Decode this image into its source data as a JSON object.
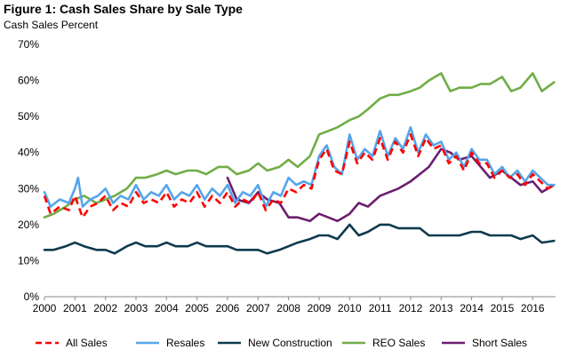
{
  "chart_data": {
    "type": "line",
    "title": "Figure 1: Cash Sales Share by Sale Type",
    "ylabel": "Cash Sales Percent",
    "xlabel": "",
    "xlim": [
      2000,
      2016.75
    ],
    "ylim": [
      0,
      70
    ],
    "yticks": [
      "0%",
      "10%",
      "20%",
      "30%",
      "40%",
      "50%",
      "60%",
      "70%"
    ],
    "xticks": [
      "2000",
      "2001",
      "2002",
      "2003",
      "2004",
      "2005",
      "2006",
      "2007",
      "2008",
      "2009",
      "2010",
      "2011",
      "2012",
      "2013",
      "2014",
      "2015",
      "2016"
    ],
    "grid": false,
    "legend_position": "bottom",
    "series": [
      {
        "name": "All Sales",
        "color": "#ff0000",
        "dash": true,
        "x": [
          2000,
          2000.2,
          2000.5,
          2000.8,
          2001,
          2001.25,
          2001.5,
          2001.75,
          2002,
          2002.25,
          2002.5,
          2002.75,
          2003,
          2003.25,
          2003.5,
          2003.75,
          2004,
          2004.25,
          2004.5,
          2004.75,
          2005,
          2005.25,
          2005.5,
          2005.75,
          2006,
          2006.25,
          2006.5,
          2006.75,
          2007,
          2007.25,
          2007.5,
          2007.75,
          2008,
          2008.25,
          2008.5,
          2008.75,
          2009,
          2009.25,
          2009.5,
          2009.75,
          2010,
          2010.25,
          2010.5,
          2010.75,
          2011,
          2011.25,
          2011.5,
          2011.75,
          2012,
          2012.25,
          2012.5,
          2012.75,
          2013,
          2013.25,
          2013.5,
          2013.75,
          2014,
          2014.25,
          2014.5,
          2014.75,
          2015,
          2015.25,
          2015.5,
          2015.75,
          2016,
          2016.25,
          2016.5,
          2016.7
        ],
        "y": [
          28,
          23,
          25,
          24,
          28,
          22,
          25,
          26,
          28,
          24,
          26,
          25,
          29,
          26,
          27,
          26,
          29,
          25,
          27,
          26,
          29,
          25,
          28,
          26,
          29,
          25,
          27,
          26,
          29,
          24,
          27,
          26,
          30,
          29,
          31,
          30,
          38,
          41,
          35,
          34,
          43,
          37,
          40,
          38,
          44,
          38,
          43,
          40,
          45,
          39,
          44,
          41,
          42,
          37,
          39,
          35,
          40,
          37,
          37,
          33,
          35,
          33,
          34,
          31,
          34,
          32,
          30,
          31
        ]
      },
      {
        "name": "Resales",
        "color": "#55a5ea",
        "dash": false,
        "x": [
          2000,
          2000.2,
          2000.5,
          2000.8,
          2001,
          2001.1,
          2001.25,
          2001.5,
          2001.75,
          2002,
          2002.25,
          2002.5,
          2002.75,
          2003,
          2003.25,
          2003.5,
          2003.75,
          2004,
          2004.25,
          2004.5,
          2004.75,
          2005,
          2005.25,
          2005.5,
          2005.75,
          2006,
          2006.25,
          2006.5,
          2006.75,
          2007,
          2007.25,
          2007.5,
          2007.75,
          2008,
          2008.25,
          2008.5,
          2008.75,
          2009,
          2009.25,
          2009.5,
          2009.75,
          2010,
          2010.25,
          2010.5,
          2010.75,
          2011,
          2011.25,
          2011.5,
          2011.75,
          2012,
          2012.25,
          2012.5,
          2012.75,
          2013,
          2013.25,
          2013.5,
          2013.75,
          2014,
          2014.25,
          2014.5,
          2014.75,
          2015,
          2015.25,
          2015.5,
          2015.75,
          2016,
          2016.25,
          2016.5,
          2016.7
        ],
        "y": [
          29,
          25,
          27,
          26,
          30,
          33,
          25,
          27,
          28,
          30,
          26,
          28,
          27,
          31,
          27,
          29,
          28,
          31,
          27,
          29,
          28,
          31,
          27,
          30,
          28,
          31,
          26,
          29,
          28,
          31,
          25,
          29,
          28,
          33,
          31,
          32,
          31,
          39,
          42,
          36,
          34,
          45,
          38,
          41,
          39,
          46,
          39,
          44,
          41,
          47,
          40,
          45,
          42,
          43,
          38,
          40,
          36,
          41,
          38,
          38,
          34,
          36,
          33,
          35,
          32,
          35,
          33,
          31,
          31
        ]
      },
      {
        "name": "New Construction",
        "color": "#0d3a4e",
        "dash": false,
        "x": [
          2000,
          2000.3,
          2000.7,
          2001,
          2001.3,
          2001.7,
          2002,
          2002.3,
          2002.7,
          2003,
          2003.3,
          2003.7,
          2004,
          2004.3,
          2004.7,
          2005,
          2005.3,
          2005.7,
          2006,
          2006.3,
          2006.7,
          2007,
          2007.3,
          2007.7,
          2008,
          2008.3,
          2008.7,
          2009,
          2009.3,
          2009.6,
          2010,
          2010.3,
          2010.6,
          2011,
          2011.3,
          2011.6,
          2012,
          2012.3,
          2012.6,
          2013,
          2013.3,
          2013.6,
          2014,
          2014.3,
          2014.6,
          2015,
          2015.3,
          2015.6,
          2016,
          2016.3,
          2016.7
        ],
        "y": [
          13,
          13,
          14,
          15,
          14,
          13,
          13,
          12,
          14,
          15,
          14,
          14,
          15,
          14,
          14,
          15,
          14,
          14,
          14,
          13,
          13,
          13,
          12,
          13,
          14,
          15,
          16,
          17,
          17,
          16,
          20,
          17,
          18,
          20,
          20,
          19,
          19,
          19,
          17,
          17,
          17,
          17,
          18,
          18,
          17,
          17,
          17,
          16,
          17,
          15,
          15.5
        ]
      },
      {
        "name": "REO Sales",
        "color": "#70ad47",
        "dash": false,
        "x": [
          2000,
          2000.3,
          2000.7,
          2001,
          2001.3,
          2001.7,
          2002,
          2002.3,
          2002.7,
          2003,
          2003.3,
          2003.7,
          2004,
          2004.3,
          2004.7,
          2005,
          2005.3,
          2005.7,
          2006,
          2006.3,
          2006.7,
          2007,
          2007.3,
          2007.7,
          2008,
          2008.3,
          2008.7,
          2009,
          2009.3,
          2009.6,
          2010,
          2010.3,
          2010.6,
          2011,
          2011.3,
          2011.6,
          2012,
          2012.3,
          2012.6,
          2013,
          2013.3,
          2013.6,
          2014,
          2014.3,
          2014.6,
          2015,
          2015.3,
          2015.6,
          2016,
          2016.3,
          2016.7
        ],
        "y": [
          22,
          23,
          25,
          27,
          28,
          26,
          27,
          28,
          30,
          33,
          33,
          34,
          35,
          34,
          35,
          35,
          34,
          36,
          36,
          34,
          35,
          37,
          35,
          36,
          38,
          36,
          39,
          45,
          46,
          47,
          49,
          50,
          52,
          55,
          56,
          56,
          57,
          58,
          60,
          62,
          57,
          58,
          58,
          59,
          59,
          61,
          57,
          58,
          62,
          57,
          59.5
        ]
      },
      {
        "name": "Short Sales",
        "color": "#6c1f6e",
        "dash": false,
        "x": [
          2006,
          2006.3,
          2006.7,
          2007,
          2007.3,
          2007.7,
          2008,
          2008.3,
          2008.7,
          2009,
          2009.3,
          2009.6,
          2010,
          2010.3,
          2010.6,
          2011,
          2011.3,
          2011.6,
          2012,
          2012.3,
          2012.6,
          2013,
          2013.3,
          2013.6,
          2014,
          2014.3,
          2014.6,
          2015,
          2015.3,
          2015.6,
          2016,
          2016.3,
          2016.7
        ],
        "y": [
          33,
          27,
          26,
          29,
          27,
          26,
          22,
          22,
          21,
          23,
          22,
          21,
          23,
          26,
          25,
          28,
          29,
          30,
          32,
          34,
          36,
          41,
          40,
          38,
          39,
          36,
          33,
          35,
          33,
          31,
          32,
          29,
          31
        ]
      }
    ]
  }
}
